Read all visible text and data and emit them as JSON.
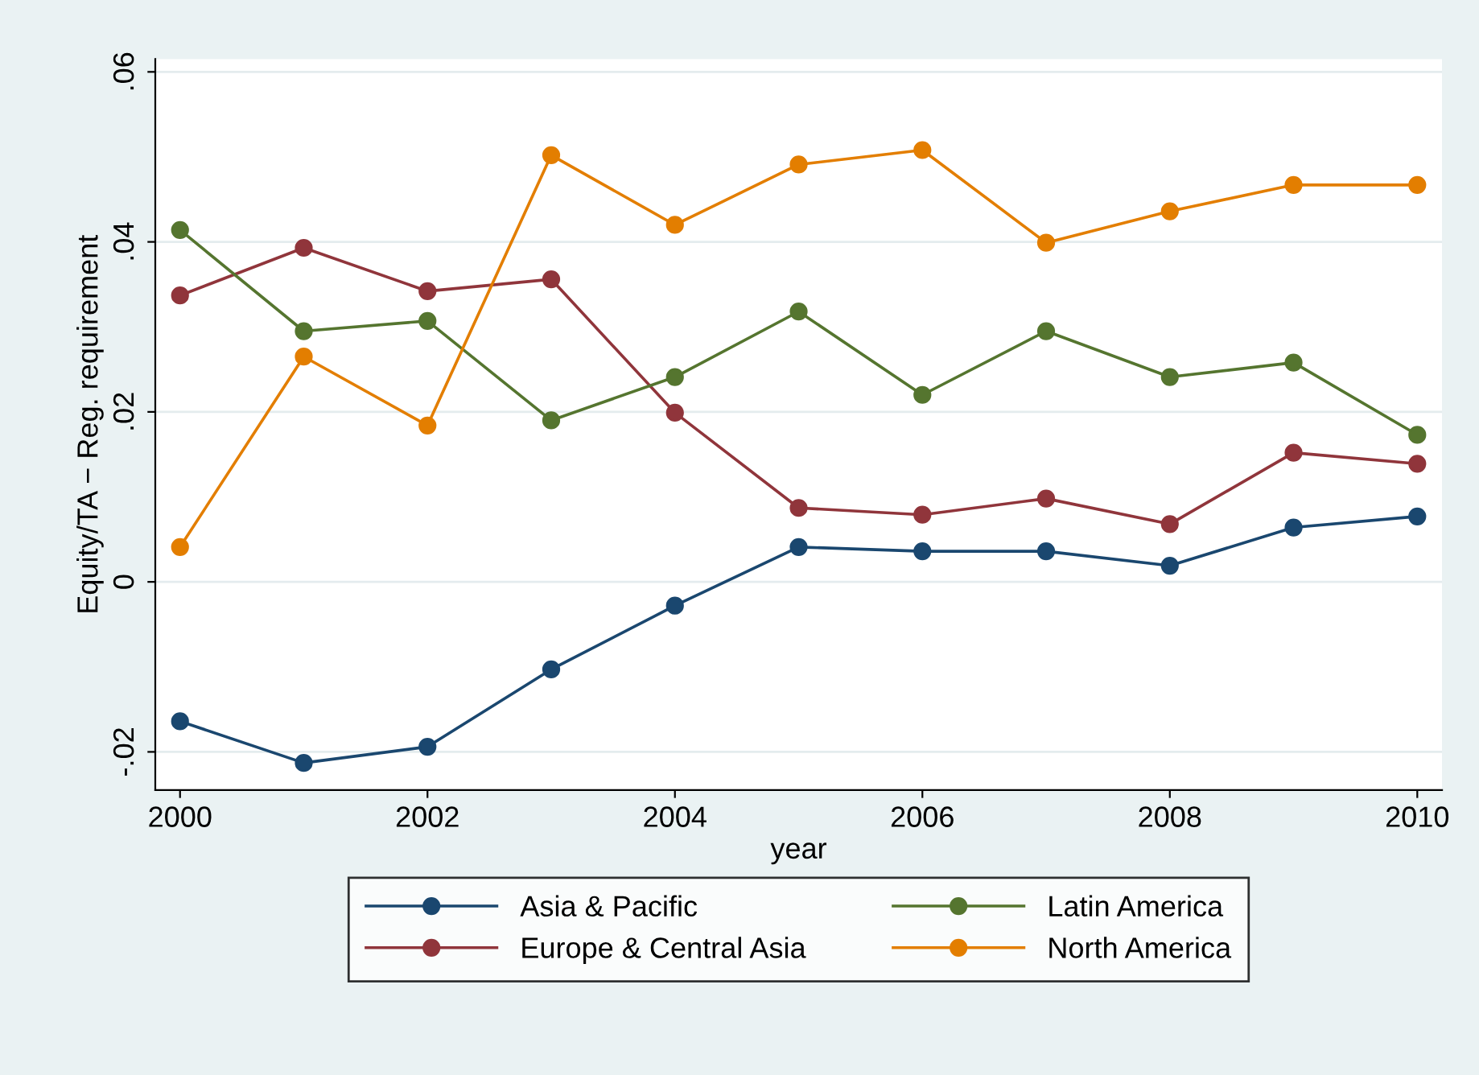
{
  "chart_data": {
    "type": "line",
    "xlabel": "year",
    "ylabel": "Equity/TA − Reg. requirement",
    "x": [
      2000,
      2001,
      2002,
      2003,
      2004,
      2005,
      2006,
      2007,
      2008,
      2009,
      2010
    ],
    "xlim": [
      1999.8,
      2010.2
    ],
    "xticks": [
      2000,
      2002,
      2004,
      2006,
      2008,
      2010
    ],
    "ylim": [
      -0.0245,
      0.0615
    ],
    "yticks": [
      {
        "value": -0.02,
        "label": "-.02"
      },
      {
        "value": 0,
        "label": "0"
      },
      {
        "value": 0.02,
        "label": ".02"
      },
      {
        "value": 0.04,
        "label": ".04"
      },
      {
        "value": 0.06,
        "label": ".06"
      }
    ],
    "grid": "y",
    "legend": "bottom",
    "marker": "circle",
    "line_style": "solid",
    "series": [
      {
        "name": "Asia & Pacific",
        "color": "#1a476f",
        "values": [
          -0.0164,
          -0.0213,
          -0.0194,
          -0.0103,
          -0.0028,
          0.0041,
          0.0036,
          0.0036,
          0.0019,
          0.0064,
          0.0077
        ]
      },
      {
        "name": "Europe & Central Asia",
        "color": "#90353b",
        "values": [
          0.0337,
          0.0393,
          0.0342,
          0.0356,
          0.0199,
          0.0087,
          0.0079,
          0.0098,
          0.0068,
          0.0152,
          0.0139
        ]
      },
      {
        "name": "Latin America",
        "color": "#55752f",
        "values": [
          0.0414,
          0.0295,
          0.0307,
          0.019,
          0.0241,
          0.0318,
          0.022,
          0.0295,
          0.0241,
          0.0258,
          0.0173
        ]
      },
      {
        "name": "North America",
        "color": "#e37e00",
        "values": [
          0.0041,
          0.0265,
          0.0184,
          0.0502,
          0.042,
          0.0491,
          0.0508,
          0.0399,
          0.0436,
          0.0467,
          0.0467
        ]
      }
    ]
  }
}
